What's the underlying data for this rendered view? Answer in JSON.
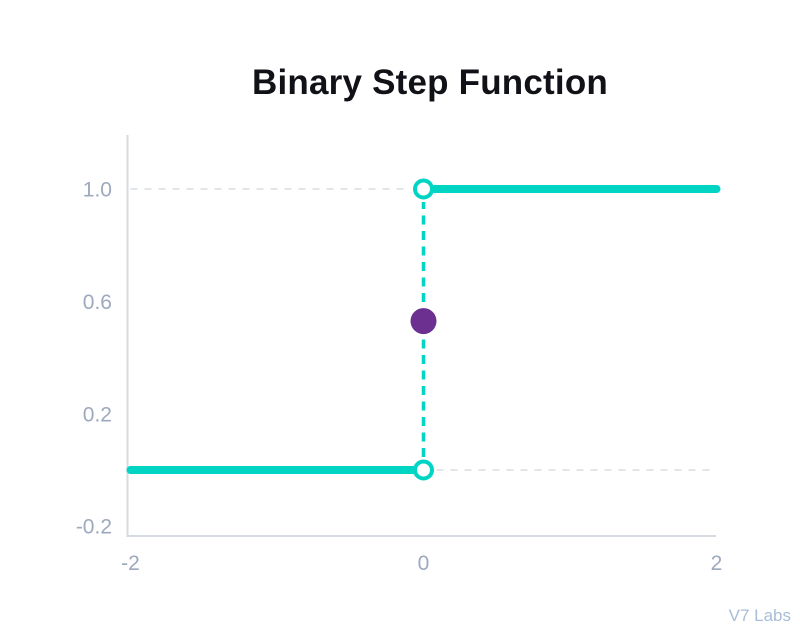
{
  "title": "Binary Step Function",
  "watermark": "V7 Labs",
  "colors": {
    "background": "#ffffff",
    "line": "#00D5C4",
    "filled_point": "#6B3090",
    "open_point_fill": "#ffffff",
    "axis": "#D6DBE2",
    "grid": "#E2E5E9",
    "tick_label": "#9DA9BD",
    "title": "#111217",
    "watermark": "#A7BDD8"
  },
  "chart_data": {
    "type": "line",
    "subtype": "binary-step",
    "title": "Binary Step Function",
    "xlabel": "",
    "ylabel": "",
    "xlim": [
      -2,
      2
    ],
    "ylim": [
      -0.2,
      1.1
    ],
    "grid": "dashed horizontal gridlines at y=0 (right of step) and y=1 (left of step) only",
    "legend_position": "none",
    "xticks": [
      {
        "value": -2,
        "label": "-2"
      },
      {
        "value": 0,
        "label": "0"
      },
      {
        "value": 2,
        "label": "2"
      }
    ],
    "yticks": [
      {
        "value": 1.0,
        "label": "1.0"
      },
      {
        "value": 0.6,
        "label": "0.6"
      },
      {
        "value": 0.2,
        "label": "0.2"
      },
      {
        "value": -0.2,
        "label": "-0.2"
      }
    ],
    "segments": [
      {
        "name": "f(x)=0 for x<0",
        "x1": -2,
        "y1": 0,
        "x2": 0,
        "y2": 0,
        "open_end_at": "x2"
      },
      {
        "name": "f(x)=1 for x>0",
        "x1": 0,
        "y1": 1,
        "x2": 2,
        "y2": 1,
        "open_end_at": "x1"
      }
    ],
    "open_points": [
      {
        "x": 0,
        "y": 0
      },
      {
        "x": 0,
        "y": 1
      }
    ],
    "discontinuity_connector": {
      "x": 0,
      "y_from": 0,
      "y_to": 1,
      "style": "dashed"
    },
    "filled_point": {
      "x": 0,
      "y": 0.53
    },
    "gridlines": [
      {
        "y": 1.0,
        "x1": -2,
        "x2": 0
      },
      {
        "y": 0.0,
        "x1": 0,
        "x2": 2
      }
    ]
  }
}
